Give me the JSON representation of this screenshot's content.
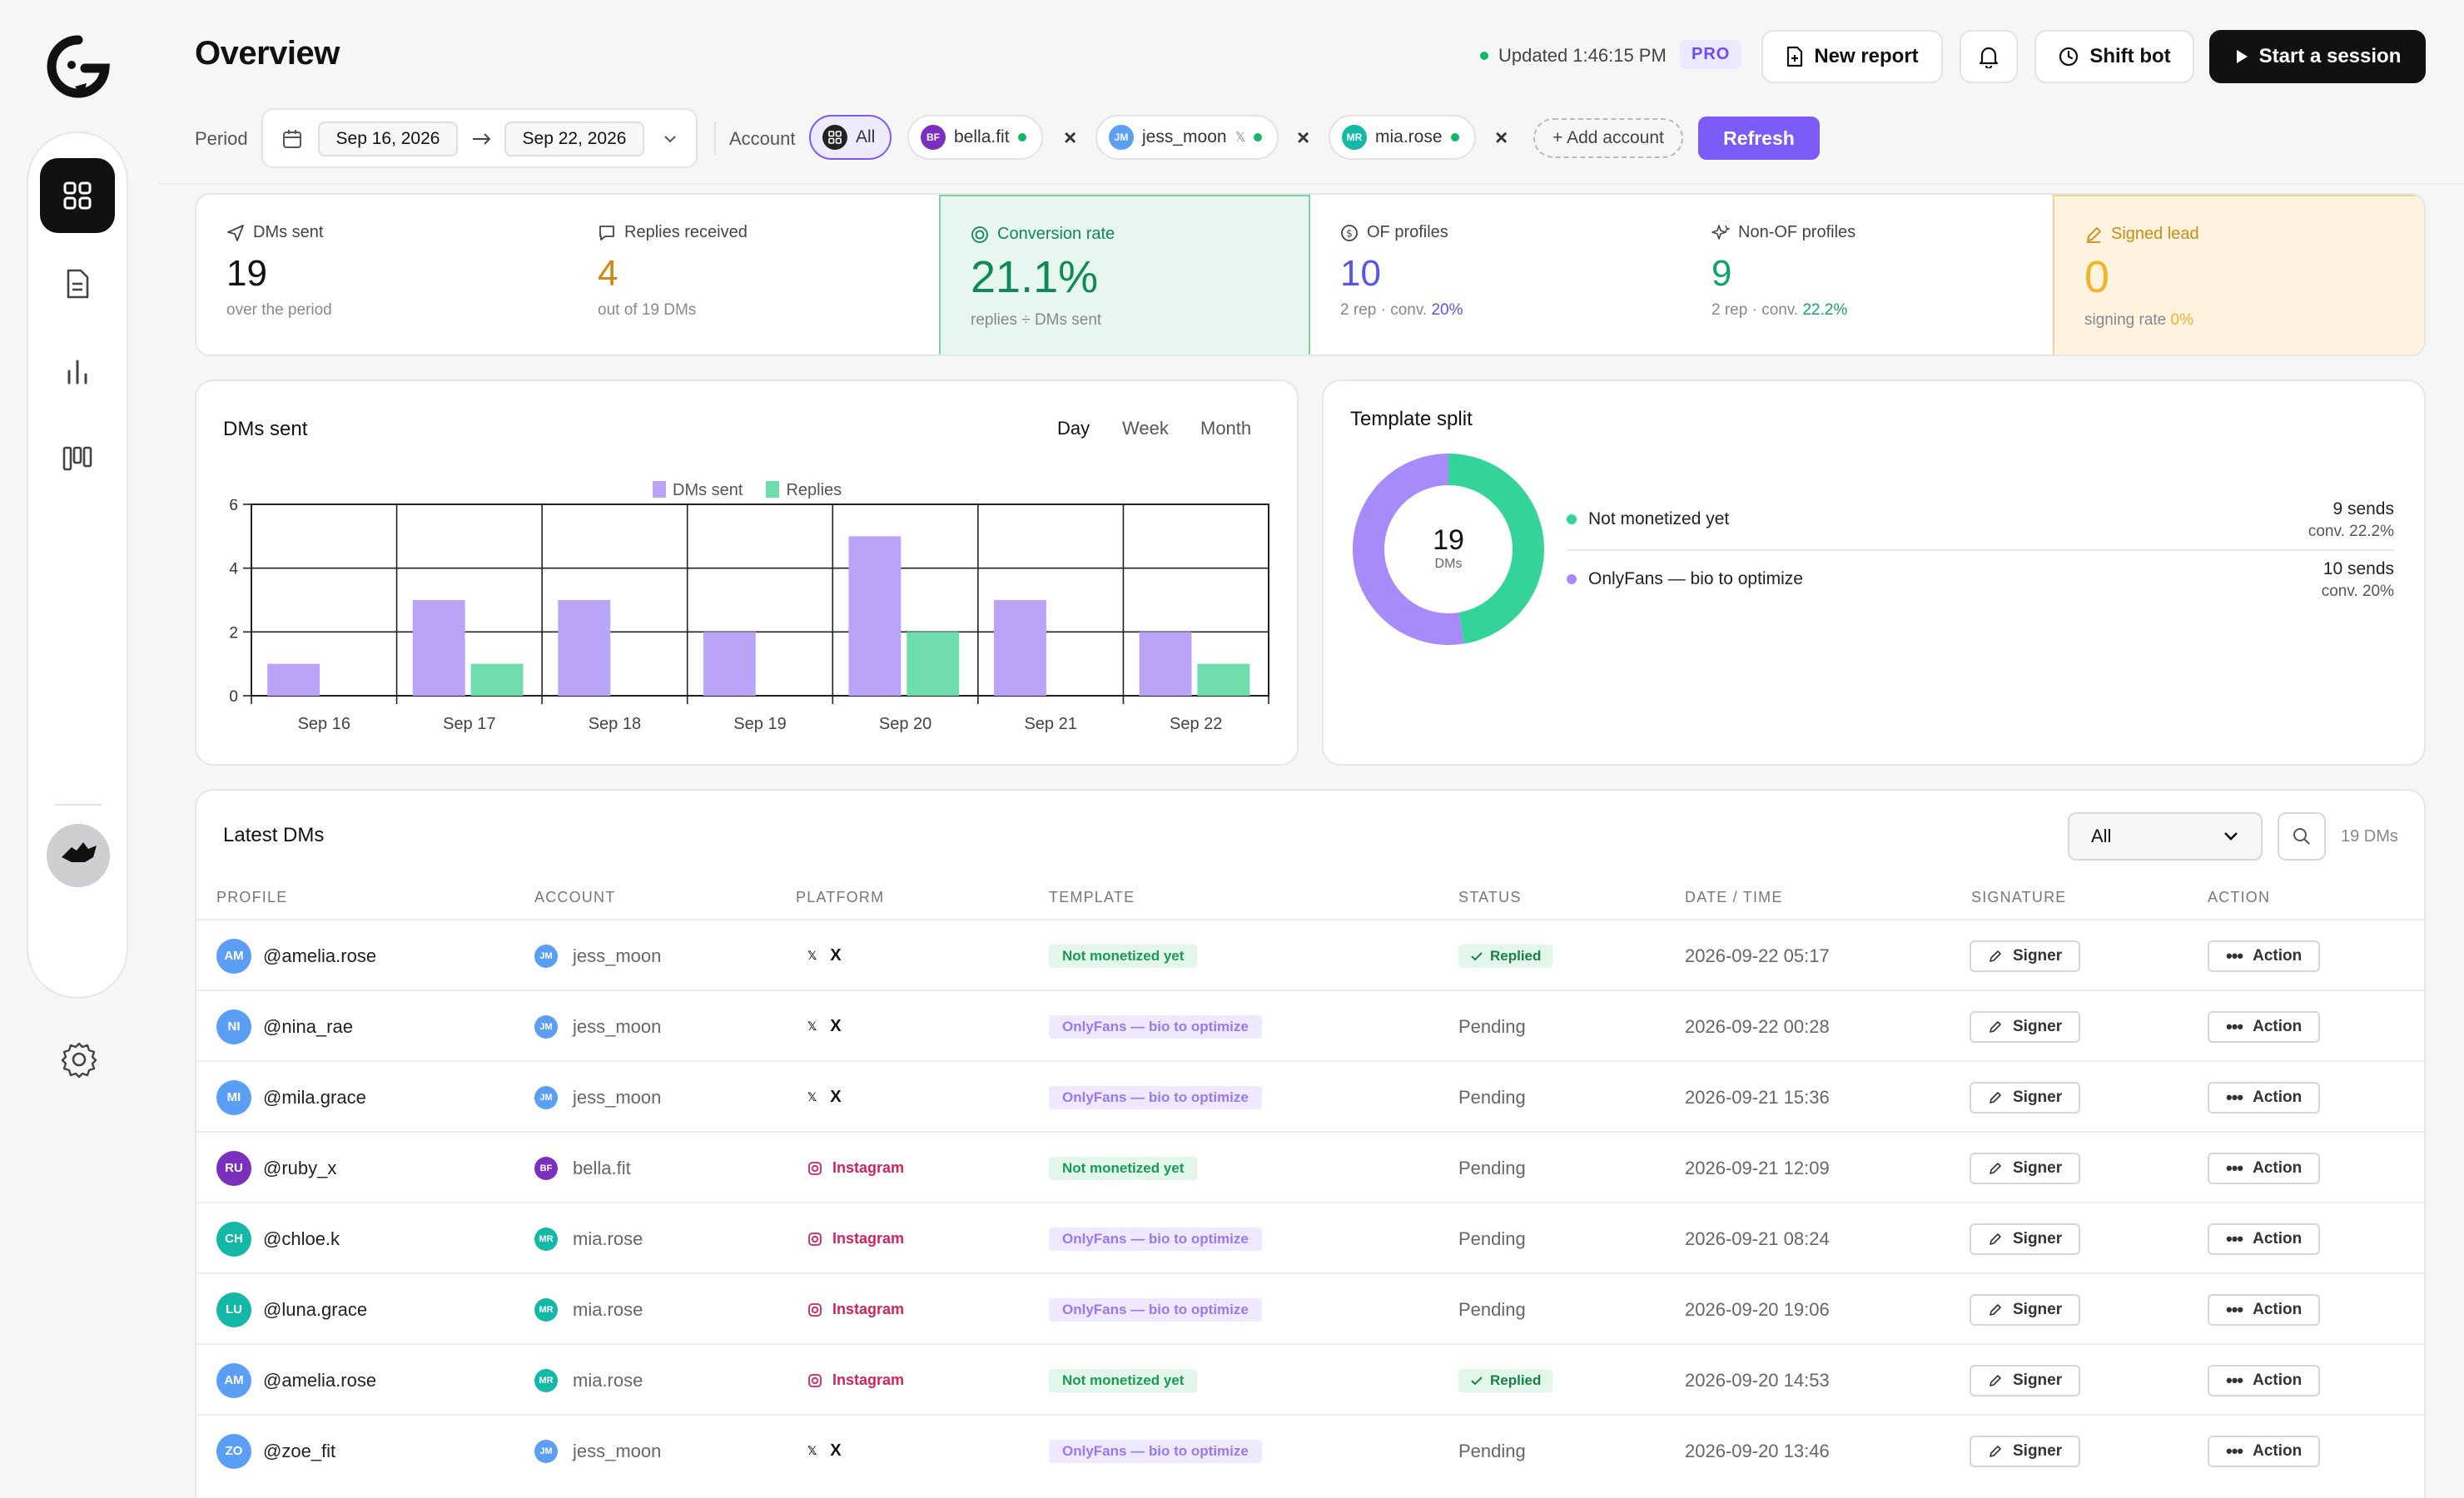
{
  "header": {
    "title": "Overview",
    "updated": "Updated 1:46:15 PM",
    "plan_badge": "PRO",
    "new_report": "New report",
    "shift_bot": "Shift bot",
    "start_session": "Start a session"
  },
  "filters": {
    "period_label": "Period",
    "date_from": "Sep 16, 2026",
    "date_to": "Sep 22, 2026",
    "account_label": "Account",
    "all": "All",
    "accounts": [
      {
        "initials": "BF",
        "name": "bella.fit"
      },
      {
        "initials": "JM",
        "name": "jess_moon"
      },
      {
        "initials": "MR",
        "name": "mia.rose"
      }
    ],
    "add_account": "+ Add account",
    "refresh": "Refresh"
  },
  "stats": [
    {
      "label": "DMs sent",
      "value": "19",
      "sub": "over the period"
    },
    {
      "label": "Replies received",
      "value": "4",
      "sub": "out of 19 DMs"
    },
    {
      "label": "Conversion rate",
      "value": "21.1%",
      "sub": "replies ÷ DMs sent"
    },
    {
      "label": "OF profiles",
      "value": "10",
      "sub": "2 rep · conv.",
      "sub_accent": "20%"
    },
    {
      "label": "Non-OF profiles",
      "value": "9",
      "sub": "2 rep · conv.",
      "sub_accent": "22.2%"
    },
    {
      "label": "Signed lead",
      "value": "0",
      "sub": "signing rate",
      "sub_accent": "0%"
    }
  ],
  "dms_chart": {
    "title": "DMs sent",
    "ranges": [
      "Day",
      "Week",
      "Month"
    ],
    "active_range": "Day"
  },
  "chart_data": {
    "type": "bar",
    "title": "DMs sent",
    "categories": [
      "Sep 16",
      "Sep 17",
      "Sep 18",
      "Sep 19",
      "Sep 20",
      "Sep 21",
      "Sep 22"
    ],
    "series": [
      {
        "name": "DMs sent",
        "values": [
          1,
          3,
          3,
          2,
          5,
          3,
          2
        ],
        "color": "#b9a4f7"
      },
      {
        "name": "Replies",
        "values": [
          0,
          1,
          0,
          0,
          2,
          0,
          1
        ],
        "color": "#6fdcae"
      }
    ],
    "ylim": [
      0,
      6
    ],
    "yticks": [
      0,
      2,
      4,
      6
    ],
    "grid": true,
    "legend": "top-center"
  },
  "template_split": {
    "title": "Template split",
    "total": "19",
    "total_label": "DMs",
    "items": [
      {
        "name": "Not monetized yet",
        "sends": "9 sends",
        "conv": "conv. 22.2%",
        "value": 9,
        "color": "#34d399"
      },
      {
        "name": "OnlyFans — bio to optimize",
        "sends": "10 sends",
        "conv": "conv. 20%",
        "value": 10,
        "color": "#a78bfa"
      }
    ]
  },
  "latest": {
    "title": "Latest DMs",
    "filter_value": "All",
    "count": "19 DMs",
    "columns": [
      "PROFILE",
      "ACCOUNT",
      "PLATFORM",
      "TEMPLATE",
      "STATUS",
      "DATE / TIME",
      "SIGNATURE",
      "ACTION"
    ],
    "signer_label": "Signer",
    "action_label": "Action",
    "rows": [
      {
        "initials": "AM",
        "profile": "@amelia.rose",
        "account_initials": "JM",
        "account": "jess_moon",
        "platform": "X",
        "template": "Not monetized yet",
        "status": "Replied",
        "datetime": "2026-09-22 05:17"
      },
      {
        "initials": "NI",
        "profile": "@nina_rae",
        "account_initials": "JM",
        "account": "jess_moon",
        "platform": "X",
        "template": "OnlyFans — bio to optimize",
        "status": "Pending",
        "datetime": "2026-09-22 00:28"
      },
      {
        "initials": "MI",
        "profile": "@mila.grace",
        "account_initials": "JM",
        "account": "jess_moon",
        "platform": "X",
        "template": "OnlyFans — bio to optimize",
        "status": "Pending",
        "datetime": "2026-09-21 15:36"
      },
      {
        "initials": "RU",
        "profile": "@ruby_x",
        "account_initials": "BF",
        "account": "bella.fit",
        "platform": "Instagram",
        "template": "Not monetized yet",
        "status": "Pending",
        "datetime": "2026-09-21 12:09"
      },
      {
        "initials": "CH",
        "profile": "@chloe.k",
        "account_initials": "MR",
        "account": "mia.rose",
        "platform": "Instagram",
        "template": "OnlyFans — bio to optimize",
        "status": "Pending",
        "datetime": "2026-09-21 08:24"
      },
      {
        "initials": "LU",
        "profile": "@luna.grace",
        "account_initials": "MR",
        "account": "mia.rose",
        "platform": "Instagram",
        "template": "OnlyFans — bio to optimize",
        "status": "Pending",
        "datetime": "2026-09-20 19:06"
      },
      {
        "initials": "AM",
        "profile": "@amelia.rose",
        "account_initials": "MR",
        "account": "mia.rose",
        "platform": "Instagram",
        "template": "Not monetized yet",
        "status": "Replied",
        "datetime": "2026-09-20 14:53"
      },
      {
        "initials": "ZO",
        "profile": "@zoe_fit",
        "account_initials": "JM",
        "account": "jess_moon",
        "platform": "X",
        "template": "OnlyFans — bio to optimize",
        "status": "Pending",
        "datetime": "2026-09-20 13:46"
      }
    ]
  },
  "colors": {
    "accent": "#7c5cf6",
    "green": "#12b76a",
    "amber": "#f5b82e",
    "blue": "#5b5bf0"
  }
}
